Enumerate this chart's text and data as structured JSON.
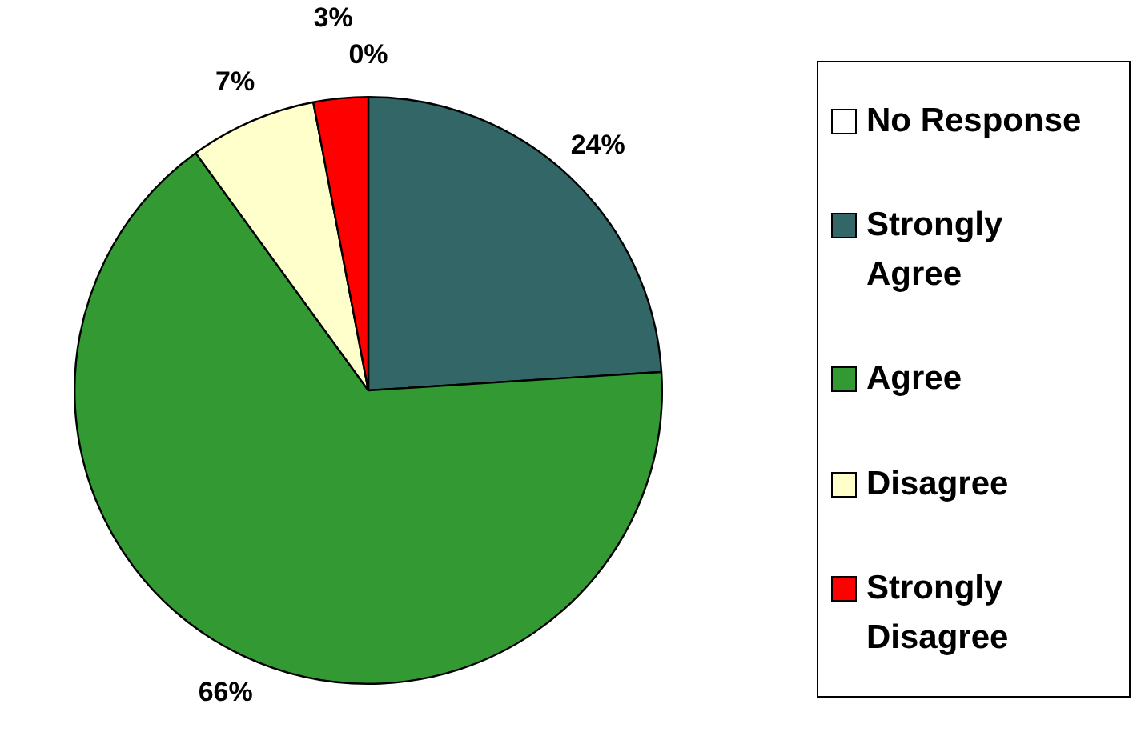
{
  "chart_data": {
    "type": "pie",
    "categories": [
      "No Response",
      "Strongly Agree",
      "Agree",
      "Disagree",
      "Strongly Disagree"
    ],
    "values": [
      0,
      24,
      66,
      7,
      3
    ],
    "colors": [
      "#ffffff",
      "#336666",
      "#339933",
      "#ffffcc",
      "#ff0000"
    ],
    "value_labels": [
      "0%",
      "24%",
      "66%",
      "7%",
      "3%"
    ],
    "legend": "right"
  }
}
